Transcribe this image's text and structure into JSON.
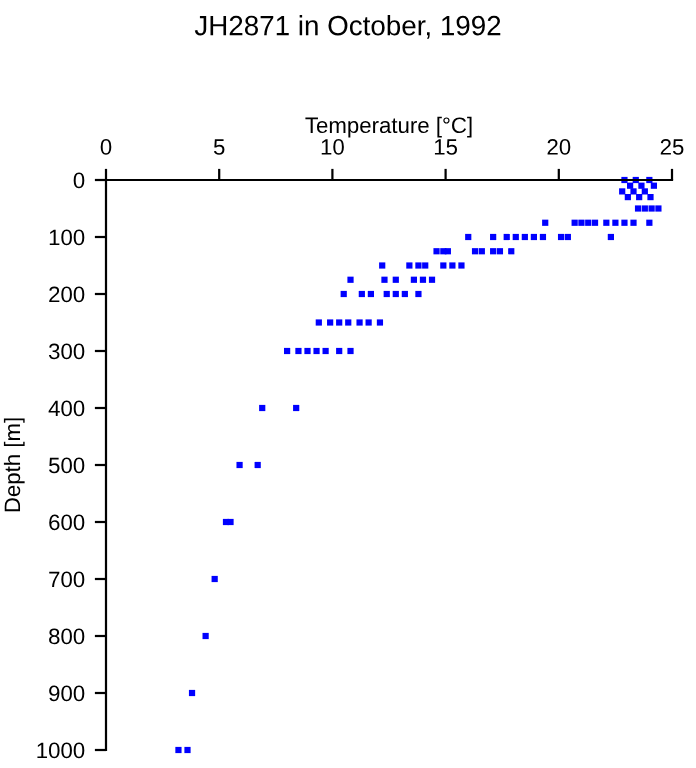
{
  "chart_data": {
    "type": "scatter",
    "title": "JH2871 in October, 1992",
    "xlabel": "Temperature [°C]",
    "ylabel": "Depth [m]",
    "series": [
      {
        "color": "#0000ff",
        "x": [
          22.9,
          23.4,
          24.0,
          23.15,
          23.65,
          24.2,
          22.8,
          23.3,
          23.8,
          23.05,
          23.55,
          24.05,
          23.5,
          23.8,
          24.1,
          24.4,
          19.4,
          20.7,
          21.0,
          21.3,
          21.6,
          22.1,
          22.5,
          22.9,
          23.3,
          24.0,
          16.0,
          17.1,
          17.7,
          18.1,
          18.5,
          18.9,
          19.3,
          20.1,
          20.4,
          22.3,
          14.6,
          14.9,
          15.1,
          16.3,
          16.6,
          17.1,
          17.4,
          17.9,
          12.2,
          13.4,
          13.8,
          14.1,
          14.9,
          15.3,
          15.7,
          10.8,
          12.3,
          12.8,
          13.6,
          14.0,
          14.4,
          10.5,
          11.3,
          11.7,
          12.4,
          12.8,
          13.2,
          13.8,
          9.4,
          9.9,
          10.3,
          10.7,
          11.2,
          11.6,
          12.1,
          8.0,
          8.5,
          8.9,
          9.3,
          9.7,
          10.3,
          10.8,
          6.9,
          8.4,
          5.9,
          6.7,
          5.3,
          5.5,
          4.8,
          4.4,
          3.8,
          3.2,
          3.6
        ],
        "values": [
          0,
          0,
          0,
          10,
          10,
          10,
          20,
          20,
          20,
          30,
          30,
          30,
          50,
          50,
          50,
          50,
          75,
          75,
          75,
          75,
          75,
          75,
          75,
          75,
          75,
          75,
          100,
          100,
          100,
          100,
          100,
          100,
          100,
          100,
          100,
          100,
          125,
          125,
          125,
          125,
          125,
          125,
          125,
          125,
          150,
          150,
          150,
          150,
          150,
          150,
          150,
          175,
          175,
          175,
          175,
          175,
          175,
          200,
          200,
          200,
          200,
          200,
          200,
          200,
          250,
          250,
          250,
          250,
          250,
          250,
          250,
          300,
          300,
          300,
          300,
          300,
          300,
          300,
          400,
          400,
          500,
          500,
          600,
          600,
          700,
          800,
          900,
          1000,
          1000
        ]
      }
    ],
    "marker": "square",
    "grid": false,
    "xlim": [
      0,
      25
    ],
    "xticks": [
      0,
      5,
      10,
      15,
      20,
      25
    ],
    "ylim": [
      1000,
      0
    ],
    "yticks": [
      0,
      100,
      200,
      300,
      400,
      500,
      600,
      700,
      800,
      900,
      1000
    ]
  }
}
